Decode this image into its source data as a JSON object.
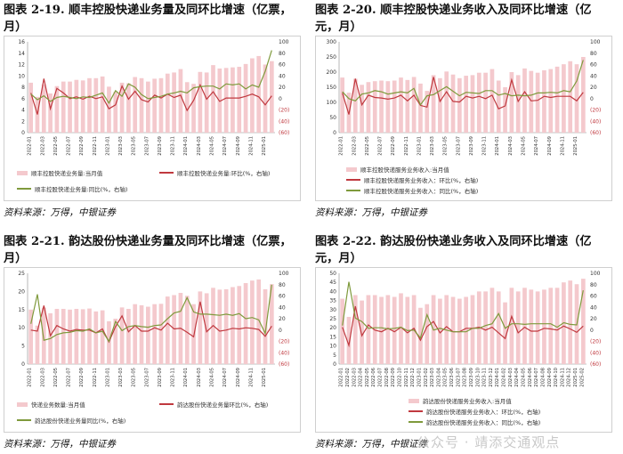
{
  "panels": [
    {
      "title": "图表 2-19. 顺丰控股快递业务量及同环比增速（亿票，月）",
      "source": "资料来源：万得，中银证券",
      "legend": [
        "顺丰控股快递业务量:当月值",
        "顺丰控股快递业务量:环比(%，右轴)",
        "顺丰控股快递业务量:同比(%，右轴)"
      ],
      "chart_data": {
        "type": "bar",
        "categories": [
          "2022-01",
          "2022-02",
          "2022-03",
          "2022-04",
          "2022-05",
          "2022-06",
          "2022-07",
          "2022-08",
          "2022-09",
          "2022-10",
          "2022-11",
          "2022-12",
          "2023-01",
          "2023-02",
          "2023-03",
          "2023-04",
          "2023-05",
          "2023-06",
          "2023-07",
          "2023-08",
          "2023-09",
          "2023-10",
          "2023-11",
          "2023-12",
          "2024-01",
          "2024-02",
          "2024-03",
          "2024-04",
          "2024-05",
          "2024-06",
          "2024-07",
          "2024-08",
          "2024-09",
          "2024-10",
          "2024-11",
          "2024-12",
          "2025-01",
          "2025-02"
        ],
        "tick_labels": [
          "2022-01",
          "2022-03",
          "2022-05",
          "2022-07",
          "2022-09",
          "2022-11",
          "2023-01",
          "2023-03",
          "2023-05",
          "2023-07",
          "2023-09",
          "2023-11",
          "2024-01",
          "2024-03",
          "2024-05",
          "2024-07",
          "2024-09",
          "2024-11",
          "2025-01"
        ],
        "left_ylim": [
          0,
          16
        ],
        "left_ticks": [
          0,
          2,
          4,
          6,
          8,
          10,
          12,
          14,
          16
        ],
        "right_ylim": [
          -60,
          100
        ],
        "right_ticks": [
          "100",
          "80",
          "60",
          "40",
          "20",
          "0",
          "(20)",
          "(40)",
          "(60)"
        ],
        "series": [
          {
            "name": "顺丰控股快递业务量:当月值",
            "axis": "left",
            "kind": "bar",
            "values": [
              8.8,
              6.3,
              8.5,
              6.9,
              8.2,
              9.0,
              9.0,
              9.3,
              9.2,
              9.6,
              9.6,
              9.9,
              8.1,
              7.2,
              8.8,
              8.7,
              9.8,
              9.6,
              9.0,
              9.5,
              9.6,
              10.4,
              10.6,
              11.2,
              8.9,
              8.6,
              10.7,
              10.6,
              11.9,
              11.3,
              11.4,
              11.5,
              11.6,
              12.1,
              13.1,
              13.5,
              12.0,
              12.6
            ]
          },
          {
            "name": "顺丰控股快递业务量:环比(%，右轴)",
            "axis": "right",
            "kind": "line",
            "values": [
              10,
              -28,
              35,
              -18,
              18,
              10,
              0,
              3,
              -1,
              4,
              0,
              3,
              -18,
              -11,
              22,
              -1,
              13,
              -2,
              -6,
              6,
              1,
              8,
              2,
              6,
              -21,
              -3,
              24,
              -1,
              12,
              -5,
              1,
              1,
              1,
              4,
              8,
              3,
              -11,
              5
            ]
          },
          {
            "name": "顺丰控股快递业务量:同比(%，右轴)",
            "axis": "right",
            "kind": "line",
            "values": [
              8,
              -2,
              5,
              -5,
              2,
              4,
              2,
              0,
              3,
              2,
              6,
              10,
              -8,
              14,
              4,
              26,
              20,
              7,
              0,
              2,
              4,
              8,
              10,
              13,
              10,
              19,
              21,
              22,
              22,
              17,
              26,
              24,
              26,
              17,
              24,
              20,
              48,
              85
            ]
          }
        ]
      }
    },
    {
      "title": "图表 2-20. 顺丰控股快递业务收入及同环比增速（亿元，月）",
      "source": "资料来源：万得，中银证券",
      "legend": [
        "顺丰控股快递服务业务收入:当月值",
        "顺丰控股快递服务业务收入：环比(%，右轴)",
        "顺丰控股快递服务业务收入：同比(%，右轴)"
      ],
      "chart_data": {
        "type": "bar",
        "categories": [
          "2022-01",
          "2022-02",
          "2022-03",
          "2022-04",
          "2022-05",
          "2022-06",
          "2022-07",
          "2022-08",
          "2022-09",
          "2022-10",
          "2022-11",
          "2022-12",
          "2023-01",
          "2023-02",
          "2023-03",
          "2023-04",
          "2023-05",
          "2023-06",
          "2023-07",
          "2023-08",
          "2023-09",
          "2023-10",
          "2023-11",
          "2023-12",
          "2024-01",
          "2024-02",
          "2024-03",
          "2024-04",
          "2024-05",
          "2024-06",
          "2024-07",
          "2024-08",
          "2024-09",
          "2024-10",
          "2024-11",
          "2024-12",
          "2025-01",
          "2025-02"
        ],
        "tick_labels": [
          "2022-01",
          "2022-03",
          "2022-05",
          "2022-07",
          "2022-09",
          "2022-11",
          "2023-01",
          "2023-03",
          "2023-05",
          "2023-07",
          "2023-09",
          "2023-11",
          "2024-01",
          "2024-03",
          "2024-05",
          "2024-07",
          "2024-09",
          "2024-11",
          "2025-01"
        ],
        "left_ylim": [
          0,
          300
        ],
        "left_ticks": [
          0,
          50,
          100,
          150,
          200,
          250,
          300
        ],
        "right_ylim": [
          -60,
          100
        ],
        "right_ticks": [
          "100",
          "80",
          "60",
          "40",
          "20",
          "0",
          "(20)",
          "(40)",
          "(60)"
        ],
        "series": [
          {
            "name": "顺丰控股快递服务业务收入:当月值",
            "axis": "left",
            "kind": "bar",
            "values": [
              182,
              132,
              178,
              158,
              167,
              170,
              172,
              170,
              172,
              182,
              174,
              184,
              162,
              138,
              190,
              180,
              202,
              192,
              180,
              188,
              190,
              198,
              198,
              210,
              172,
              150,
              200,
              190,
              212,
              204,
              198,
              206,
              210,
              218,
              226,
              236,
              226,
              250
            ]
          },
          {
            "name": "顺丰控股快递服务业务收入：环比(%，右轴)",
            "axis": "right",
            "kind": "line",
            "values": [
              10,
              -28,
              35,
              -11,
              6,
              2,
              1,
              -1,
              1,
              6,
              -4,
              6,
              -12,
              -15,
              38,
              -5,
              12,
              -5,
              -6,
              4,
              1,
              4,
              0,
              6,
              -18,
              -13,
              33,
              -5,
              12,
              -4,
              -3,
              4,
              2,
              4,
              4,
              4,
              -4,
              11
            ]
          },
          {
            "name": "顺丰控股快递服务业务收入：同比(%，右轴)",
            "axis": "right",
            "kind": "line",
            "values": [
              12,
              0,
              -4,
              8,
              10,
              14,
              12,
              8,
              10,
              12,
              10,
              18,
              -11,
              5,
              7,
              14,
              21,
              13,
              5,
              11,
              10,
              9,
              14,
              14,
              6,
              9,
              5,
              6,
              5,
              6,
              10,
              10,
              11,
              10,
              14,
              12,
              31,
              68
            ]
          }
        ]
      }
    },
    {
      "title": "图表 2-21. 韵达股份快递业务量及同环比增速（亿票，月）",
      "source": "资料来源：万得，中银证券",
      "legend": [
        "快递业务数量:当月值",
        "韵达股份快递业务量环比(%，右轴)",
        "韵达股份快递业务量同比(%，右轴)"
      ],
      "chart_data": {
        "type": "bar",
        "categories": [
          "2022-01",
          "2022-02",
          "2022-03",
          "2022-04",
          "2022-05",
          "2022-06",
          "2022-07",
          "2022-08",
          "2022-09",
          "2022-10",
          "2022-11",
          "2022-12",
          "2023-01",
          "2023-02",
          "2023-03",
          "2023-04",
          "2023-05",
          "2023-06",
          "2023-07",
          "2023-08",
          "2023-09",
          "2023-10",
          "2023-11",
          "2023-12",
          "2024-01",
          "2024-02",
          "2024-03",
          "2024-04",
          "2024-05",
          "2024-06",
          "2024-07",
          "2024-08",
          "2024-09",
          "2024-10",
          "2024-11",
          "2024-12",
          "2025-01",
          "2025-02"
        ],
        "tick_labels": [
          "2022-01",
          "2022-03",
          "2022-05",
          "2022-07",
          "2022-09",
          "2022-11",
          "2023-01",
          "2023-03",
          "2023-05",
          "2023-07",
          "2023-09",
          "2023-11",
          "2024-01",
          "2024-03",
          "2024-05",
          "2024-07",
          "2024-09",
          "2024-11",
          "2025-01"
        ],
        "left_ylim": [
          0,
          25
        ],
        "left_ticks": [
          0,
          5,
          10,
          15,
          20,
          25
        ],
        "right_ylim": [
          -60,
          100
        ],
        "right_ticks": [
          "100",
          "80",
          "60",
          "40",
          "20",
          "0",
          "(20)",
          "(40)",
          "(60)"
        ],
        "series": [
          {
            "name": "快递业务数量:当月值",
            "axis": "left",
            "kind": "bar",
            "values": [
              15.0,
              10.6,
              15.5,
              14.0,
              15.2,
              15.2,
              15.0,
              15.2,
              15.1,
              15.3,
              14.5,
              14.8,
              11.8,
              12.5,
              15.6,
              15.2,
              16.5,
              16.2,
              15.8,
              16.5,
              16.6,
              18.6,
              19.0,
              19.6,
              18.8,
              16.5,
              20.0,
              19.5,
              21.0,
              20.5,
              20.6,
              21.2,
              21.5,
              22.3,
              23.0,
              23.3,
              20.6,
              22.0
            ]
          },
          {
            "name": "韵达股份快递业务量环比(%，右轴)",
            "axis": "right",
            "kind": "line",
            "values": [
              0,
              -2,
              43,
              -10,
              8,
              2,
              -2,
              1,
              0,
              0,
              -5,
              2,
              -21,
              6,
              25,
              -3,
              8,
              -2,
              -2,
              4,
              0,
              12,
              2,
              3,
              -4,
              -12,
              50,
              -3,
              8,
              -2,
              0,
              3,
              2,
              4,
              3,
              1,
              -11,
              7
            ]
          },
          {
            "name": "韵达股份快递业务量同比(%，右轴)",
            "axis": "right",
            "kind": "line",
            "values": [
              11,
              63,
              -18,
              -15,
              -8,
              -5,
              -4,
              -1,
              -2,
              2,
              -5,
              -2,
              -20,
              15,
              -1,
              6,
              8,
              6,
              5,
              8,
              9,
              20,
              30,
              33,
              57,
              32,
              28,
              28,
              27,
              26,
              28,
              26,
              29,
              20,
              22,
              18,
              -6,
              80
            ]
          }
        ]
      }
    },
    {
      "title": "图表 2-22. 韵达股份快递业务收入及同环比增速（亿元，月）",
      "source": "资料来源：万得，中银证券",
      "legend": [
        "韵达股份快递服务业务收入:当月值",
        "韵达股份快递服务业务收入：环比(%，右轴)",
        "韵达股份快递服务业务收入：同比(%，右轴)"
      ],
      "chart_data": {
        "type": "bar",
        "categories": [
          "2022-01",
          "2022-02",
          "2022-03",
          "2022-04",
          "2022-05",
          "2022-06",
          "2022-07",
          "2022-08",
          "2022-09",
          "2022-10",
          "2022-11",
          "2022-12",
          "2023-01",
          "2023-02",
          "2023-03",
          "2023-04",
          "2023-05",
          "2023-06",
          "2023-07",
          "2023-08",
          "2023-09",
          "2023-10",
          "2023-11",
          "2023-12",
          "2024-01",
          "2024-02",
          "2024-03",
          "2024-04",
          "2024-05",
          "2024-06",
          "2024-07",
          "2024-08",
          "2024-09",
          "2024-10",
          "2024-11",
          "2024-12",
          "2025-01",
          "2025-02"
        ],
        "tick_labels": [
          "2022-01",
          "2022-02",
          "2022-03",
          "2022-04",
          "2022-05",
          "2022-06",
          "2022-07",
          "2022-08",
          "2022-09",
          "2022-10",
          "2022-11",
          "2022-12",
          "2023-01",
          "2023-02",
          "2023-03",
          "2023-04",
          "2023-05",
          "2023-06",
          "2023-07",
          "2023-08",
          "2023-09",
          "2023-10",
          "2023-11",
          "2023-12",
          "2024-01",
          "2024-02",
          "2024-03",
          "2024-04",
          "2024-05",
          "2024-06",
          "2024-07",
          "2024-08",
          "2024-09",
          "2024-10",
          "2024-11",
          "2024-12",
          "2025-01",
          "2025-02"
        ],
        "left_ylim": [
          0,
          50
        ],
        "left_ticks": [
          0,
          5,
          10,
          15,
          20,
          25,
          30,
          35,
          40,
          45,
          50
        ],
        "right_ylim": [
          -60,
          100
        ],
        "right_ticks": [
          "100",
          "80",
          "60",
          "40",
          "20",
          "0",
          "(20)",
          "(40)",
          "(60)"
        ],
        "series": [
          {
            "name": "韵达股份快递服务业务收入:当月值",
            "axis": "left",
            "kind": "bar",
            "values": [
              36,
              26,
              38,
              35,
              38,
              38,
              37,
              38,
              37,
              39,
              37,
              38,
              31,
              33,
              38,
              36,
              38,
              37,
              36,
              37,
              38,
              40,
              40,
              42,
              40,
              34,
              42,
              40,
              42,
              41,
              40,
              41,
              42,
              42,
              45,
              46,
              44,
              47
            ]
          },
          {
            "name": "韵达股份快递服务业务收入：环比(%，右轴)",
            "axis": "right",
            "kind": "line",
            "values": [
              5,
              -27,
              42,
              -10,
              9,
              0,
              -3,
              3,
              -3,
              5,
              -5,
              3,
              -18,
              6,
              15,
              -5,
              6,
              -3,
              -3,
              3,
              3,
              5,
              0,
              5,
              -5,
              -15,
              24,
              -5,
              5,
              -2,
              -2,
              3,
              2,
              0,
              7,
              2,
              -4,
              7
            ]
          },
          {
            "name": "韵达股份快递服务业务收入：同比(%，右轴)",
            "axis": "right",
            "kind": "line",
            "values": [
              8,
              85,
              21,
              15,
              3,
              4,
              4,
              2,
              3,
              5,
              -1,
              0,
              -14,
              27,
              0,
              3,
              0,
              -3,
              -3,
              -3,
              3,
              3,
              8,
              11,
              29,
              3,
              11,
              11,
              10,
              11,
              11,
              11,
              11,
              5,
              13,
              10,
              9,
              70
            ]
          }
        ]
      }
    }
  ],
  "colors": {
    "bar": "#f4c9cd",
    "mom": "#c0393f",
    "yoy": "#7f9a3c",
    "neg": "#c0393f",
    "axis": "#333333",
    "frame": "#cfcfcf"
  },
  "watermark": "公众号 · 靖添交通观点"
}
